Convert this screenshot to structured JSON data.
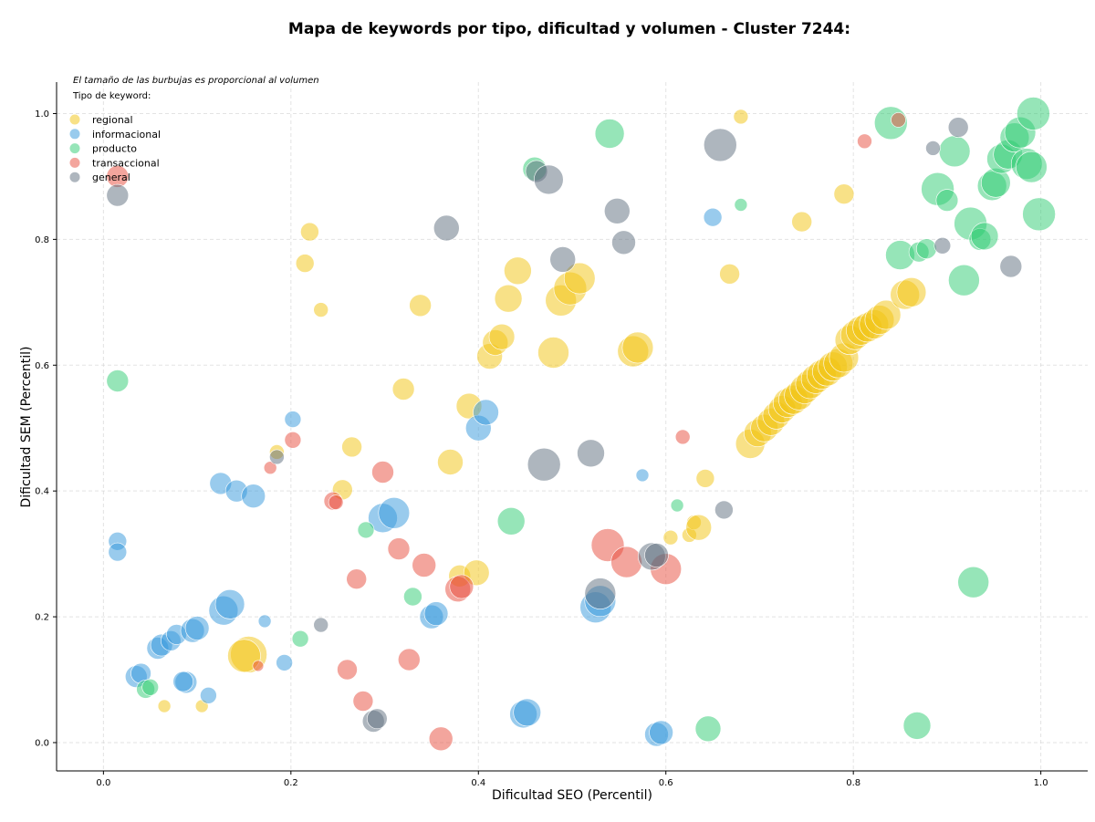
{
  "chart_data": {
    "type": "scatter",
    "title": "Mapa de keywords por tipo, dificultad y volumen - Cluster 7244:",
    "xlabel": "Dificultad SEO (Percentil)",
    "ylabel": "Dificultad SEM (Percentil)",
    "xlim": [
      -0.05,
      1.05
    ],
    "ylim": [
      -0.045,
      1.05
    ],
    "xticks": [
      "0.0",
      "0.2",
      "0.4",
      "0.6",
      "0.8",
      "1.0"
    ],
    "yticks": [
      "0.0",
      "0.2",
      "0.4",
      "0.6",
      "0.8",
      "1.0"
    ],
    "grid": true,
    "legend_position": "top-left",
    "note": "El tamaño de las burbujas es proporcional al volumen",
    "legend_title": "Tipo de keyword:",
    "series": [
      {
        "name": "regional",
        "color": "#f1c40f",
        "points": [
          [
            0.155,
            0.14,
            20
          ],
          [
            0.15,
            0.138,
            18
          ],
          [
            0.065,
            0.058,
            7
          ],
          [
            0.105,
            0.058,
            7
          ],
          [
            0.22,
            0.812,
            10
          ],
          [
            0.215,
            0.762,
            10
          ],
          [
            0.232,
            0.688,
            8
          ],
          [
            0.185,
            0.462,
            8
          ],
          [
            0.255,
            0.402,
            11
          ],
          [
            0.265,
            0.47,
            11
          ],
          [
            0.32,
            0.562,
            12
          ],
          [
            0.338,
            0.695,
            12
          ],
          [
            0.37,
            0.446,
            14
          ],
          [
            0.39,
            0.535,
            14
          ],
          [
            0.38,
            0.265,
            12
          ],
          [
            0.398,
            0.27,
            14
          ],
          [
            0.412,
            0.614,
            14
          ],
          [
            0.418,
            0.636,
            14
          ],
          [
            0.425,
            0.645,
            14
          ],
          [
            0.432,
            0.706,
            15
          ],
          [
            0.442,
            0.75,
            15
          ],
          [
            0.48,
            0.62,
            17
          ],
          [
            0.488,
            0.703,
            17
          ],
          [
            0.498,
            0.722,
            18
          ],
          [
            0.508,
            0.738,
            17
          ],
          [
            0.565,
            0.622,
            17
          ],
          [
            0.57,
            0.628,
            17
          ],
          [
            0.605,
            0.326,
            8
          ],
          [
            0.625,
            0.33,
            8
          ],
          [
            0.63,
            0.35,
            8
          ],
          [
            0.635,
            0.342,
            14
          ],
          [
            0.642,
            0.42,
            10
          ],
          [
            0.668,
            0.745,
            11
          ],
          [
            0.68,
            0.995,
            8
          ],
          [
            0.69,
            0.475,
            16
          ],
          [
            0.698,
            0.492,
            15
          ],
          [
            0.705,
            0.5,
            15
          ],
          [
            0.712,
            0.51,
            15
          ],
          [
            0.718,
            0.52,
            15
          ],
          [
            0.724,
            0.53,
            15
          ],
          [
            0.73,
            0.54,
            16
          ],
          [
            0.736,
            0.545,
            16
          ],
          [
            0.742,
            0.552,
            16
          ],
          [
            0.748,
            0.562,
            16
          ],
          [
            0.754,
            0.57,
            16
          ],
          [
            0.76,
            0.578,
            16
          ],
          [
            0.766,
            0.585,
            16
          ],
          [
            0.772,
            0.59,
            16
          ],
          [
            0.778,
            0.598,
            16
          ],
          [
            0.784,
            0.603,
            16
          ],
          [
            0.79,
            0.612,
            16
          ],
          [
            0.796,
            0.64,
            16
          ],
          [
            0.802,
            0.648,
            16
          ],
          [
            0.808,
            0.655,
            16
          ],
          [
            0.815,
            0.66,
            16
          ],
          [
            0.822,
            0.665,
            16
          ],
          [
            0.828,
            0.672,
            16
          ],
          [
            0.835,
            0.68,
            16
          ],
          [
            0.745,
            0.828,
            11
          ],
          [
            0.79,
            0.872,
            11
          ],
          [
            0.855,
            0.712,
            16
          ],
          [
            0.862,
            0.716,
            16
          ]
        ]
      },
      {
        "name": "informacional",
        "color": "#3498db",
        "points": [
          [
            0.015,
            0.32,
            10
          ],
          [
            0.015,
            0.303,
            10
          ],
          [
            0.035,
            0.105,
            12
          ],
          [
            0.04,
            0.11,
            11
          ],
          [
            0.058,
            0.15,
            12
          ],
          [
            0.062,
            0.155,
            12
          ],
          [
            0.072,
            0.162,
            11
          ],
          [
            0.078,
            0.172,
            11
          ],
          [
            0.088,
            0.096,
            12
          ],
          [
            0.085,
            0.097,
            11
          ],
          [
            0.095,
            0.178,
            13
          ],
          [
            0.1,
            0.182,
            13
          ],
          [
            0.112,
            0.075,
            9
          ],
          [
            0.125,
            0.412,
            12
          ],
          [
            0.128,
            0.21,
            16
          ],
          [
            0.135,
            0.22,
            16
          ],
          [
            0.142,
            0.4,
            12
          ],
          [
            0.16,
            0.392,
            13
          ],
          [
            0.172,
            0.193,
            7
          ],
          [
            0.193,
            0.127,
            9
          ],
          [
            0.202,
            0.514,
            9
          ],
          [
            0.298,
            0.357,
            16
          ],
          [
            0.31,
            0.365,
            17
          ],
          [
            0.35,
            0.2,
            13
          ],
          [
            0.355,
            0.205,
            13
          ],
          [
            0.4,
            0.5,
            14
          ],
          [
            0.408,
            0.525,
            14
          ],
          [
            0.448,
            0.045,
            15
          ],
          [
            0.452,
            0.048,
            15
          ],
          [
            0.525,
            0.215,
            17
          ],
          [
            0.53,
            0.225,
            17
          ],
          [
            0.575,
            0.425,
            7
          ],
          [
            0.59,
            0.013,
            13
          ],
          [
            0.595,
            0.016,
            13
          ],
          [
            0.65,
            0.835,
            10
          ]
        ]
      },
      {
        "name": "producto",
        "color": "#2ecc71",
        "points": [
          [
            0.015,
            0.575,
            12
          ],
          [
            0.045,
            0.085,
            10
          ],
          [
            0.05,
            0.088,
            9
          ],
          [
            0.21,
            0.165,
            9
          ],
          [
            0.28,
            0.338,
            9
          ],
          [
            0.33,
            0.232,
            10
          ],
          [
            0.435,
            0.352,
            15
          ],
          [
            0.46,
            0.912,
            13
          ],
          [
            0.54,
            0.968,
            16
          ],
          [
            0.612,
            0.377,
            7
          ],
          [
            0.645,
            0.022,
            14
          ],
          [
            0.68,
            0.855,
            7
          ],
          [
            0.84,
            0.985,
            18
          ],
          [
            0.85,
            0.775,
            16
          ],
          [
            0.87,
            0.78,
            11
          ],
          [
            0.878,
            0.785,
            11
          ],
          [
            0.868,
            0.027,
            15
          ],
          [
            0.89,
            0.88,
            18
          ],
          [
            0.9,
            0.862,
            12
          ],
          [
            0.908,
            0.94,
            17
          ],
          [
            0.918,
            0.735,
            17
          ],
          [
            0.925,
            0.825,
            18
          ],
          [
            0.935,
            0.8,
            12
          ],
          [
            0.94,
            0.805,
            15
          ],
          [
            0.948,
            0.885,
            16
          ],
          [
            0.952,
            0.89,
            16
          ],
          [
            0.958,
            0.928,
            16
          ],
          [
            0.965,
            0.935,
            16
          ],
          [
            0.972,
            0.962,
            16
          ],
          [
            0.978,
            0.97,
            17
          ],
          [
            0.985,
            0.92,
            17
          ],
          [
            0.99,
            0.915,
            17
          ],
          [
            0.992,
            1.0,
            18
          ],
          [
            0.998,
            0.84,
            18
          ],
          [
            0.928,
            0.255,
            17
          ]
        ]
      },
      {
        "name": "transaccional",
        "color": "#e74c3c",
        "points": [
          [
            0.015,
            0.9,
            12
          ],
          [
            0.165,
            0.122,
            6
          ],
          [
            0.178,
            0.437,
            7
          ],
          [
            0.202,
            0.481,
            9
          ],
          [
            0.245,
            0.384,
            10
          ],
          [
            0.248,
            0.382,
            8
          ],
          [
            0.26,
            0.116,
            11
          ],
          [
            0.27,
            0.26,
            11
          ],
          [
            0.277,
            0.066,
            11
          ],
          [
            0.298,
            0.43,
            12
          ],
          [
            0.315,
            0.308,
            12
          ],
          [
            0.326,
            0.132,
            12
          ],
          [
            0.342,
            0.282,
            13
          ],
          [
            0.36,
            0.006,
            13
          ],
          [
            0.378,
            0.244,
            14
          ],
          [
            0.382,
            0.248,
            13
          ],
          [
            0.538,
            0.314,
            18
          ],
          [
            0.558,
            0.287,
            17
          ],
          [
            0.6,
            0.276,
            17
          ],
          [
            0.618,
            0.486,
            8
          ],
          [
            0.812,
            0.956,
            8
          ],
          [
            0.848,
            0.99,
            8
          ]
        ]
      },
      {
        "name": "general",
        "color": "#5d6d7e",
        "points": [
          [
            0.015,
            0.87,
            12
          ],
          [
            0.185,
            0.454,
            8
          ],
          [
            0.232,
            0.187,
            8
          ],
          [
            0.288,
            0.034,
            12
          ],
          [
            0.292,
            0.038,
            11
          ],
          [
            0.366,
            0.818,
            14
          ],
          [
            0.462,
            0.908,
            12
          ],
          [
            0.475,
            0.895,
            16
          ],
          [
            0.47,
            0.442,
            18
          ],
          [
            0.49,
            0.768,
            14
          ],
          [
            0.52,
            0.46,
            15
          ],
          [
            0.53,
            0.237,
            17
          ],
          [
            0.548,
            0.845,
            14
          ],
          [
            0.555,
            0.795,
            13
          ],
          [
            0.585,
            0.296,
            15
          ],
          [
            0.59,
            0.298,
            13
          ],
          [
            0.662,
            0.37,
            10
          ],
          [
            0.658,
            0.95,
            18
          ],
          [
            0.885,
            0.945,
            8
          ],
          [
            0.895,
            0.79,
            9
          ],
          [
            0.912,
            0.978,
            11
          ],
          [
            0.968,
            0.757,
            12
          ]
        ]
      }
    ]
  }
}
